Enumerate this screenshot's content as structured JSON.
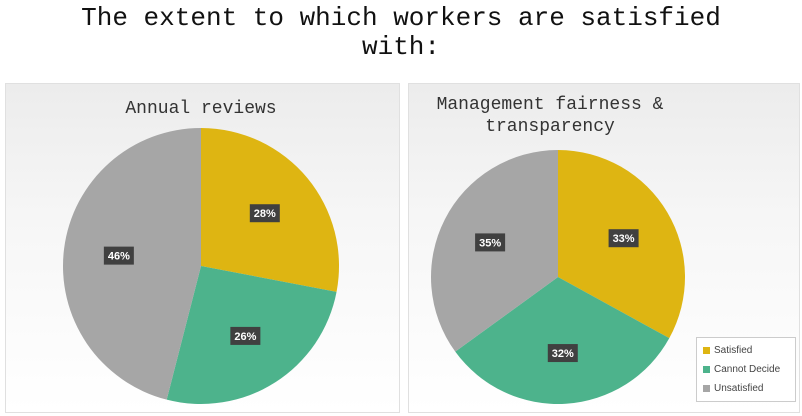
{
  "title": "The extent to which workers are satisfied with:",
  "chart_data": [
    {
      "type": "pie",
      "title": "Annual reviews",
      "values": [
        28,
        26,
        46
      ],
      "value_labels": [
        "28%",
        "26%",
        "46%"
      ],
      "colors": [
        "#deb512",
        "#4db38c",
        "#a6a6a6"
      ]
    },
    {
      "type": "pie",
      "title": "Management fairness & transparency",
      "categories": [
        "Satisfied",
        "Cannot Decide",
        "Unsatisfied"
      ],
      "values": [
        33,
        32,
        35
      ],
      "value_labels": [
        "33%",
        "32%",
        "35%"
      ],
      "colors": [
        "#deb512",
        "#4db38c",
        "#a6a6a6"
      ],
      "legend": "lower right"
    }
  ]
}
